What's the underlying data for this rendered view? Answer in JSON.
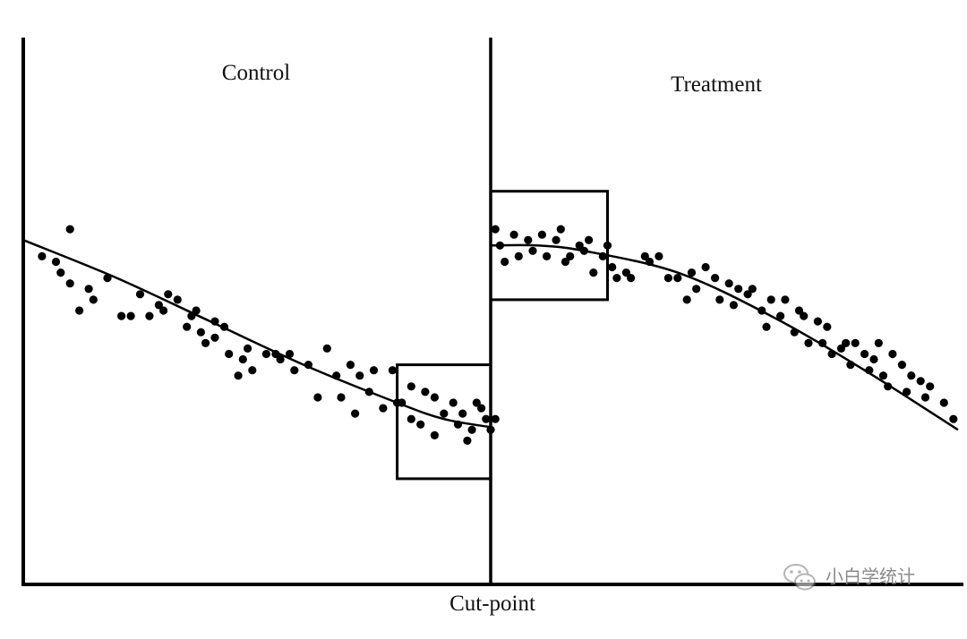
{
  "chart_data": {
    "type": "scatter",
    "title": "",
    "xlabel": "Cut-point",
    "ylabel": "",
    "xlim": [
      0,
      100
    ],
    "ylim": [
      0,
      100
    ],
    "grid": false,
    "cutpoint": 50,
    "group_labels": {
      "left": "Control",
      "right": "Treatment"
    },
    "series": [
      {
        "name": "Control",
        "fit": [
          [
            0,
            63
          ],
          [
            10,
            56
          ],
          [
            20,
            48
          ],
          [
            30,
            40
          ],
          [
            40,
            33
          ],
          [
            45,
            30
          ],
          [
            50,
            28.5
          ]
        ],
        "points": [
          [
            2,
            60
          ],
          [
            3.5,
            59
          ],
          [
            4,
            57
          ],
          [
            5,
            55
          ],
          [
            5,
            65
          ],
          [
            6,
            50
          ],
          [
            7,
            54
          ],
          [
            7.5,
            52
          ],
          [
            9,
            56
          ],
          [
            10.5,
            49
          ],
          [
            11.5,
            49
          ],
          [
            12.5,
            53
          ],
          [
            13.5,
            49
          ],
          [
            14.5,
            51
          ],
          [
            15,
            50
          ],
          [
            15.5,
            53
          ],
          [
            16.5,
            52
          ],
          [
            17.5,
            47
          ],
          [
            18,
            49
          ],
          [
            18.5,
            50
          ],
          [
            19,
            46
          ],
          [
            19.5,
            44
          ],
          [
            20.5,
            45
          ],
          [
            20.5,
            48
          ],
          [
            21.5,
            47
          ],
          [
            22,
            42
          ],
          [
            23,
            38
          ],
          [
            23.5,
            41
          ],
          [
            24,
            43
          ],
          [
            24.5,
            39
          ],
          [
            26,
            42
          ],
          [
            27,
            42
          ],
          [
            27.5,
            41
          ],
          [
            28.5,
            42
          ],
          [
            29,
            39
          ],
          [
            30.5,
            40
          ],
          [
            31.5,
            34
          ],
          [
            32.5,
            43
          ],
          [
            33.5,
            38
          ],
          [
            34,
            34
          ],
          [
            35,
            40
          ],
          [
            35.5,
            31
          ],
          [
            36,
            38
          ],
          [
            37,
            35
          ],
          [
            37.5,
            39
          ],
          [
            38.5,
            32
          ],
          [
            39.5,
            39
          ],
          [
            40,
            33
          ],
          [
            40.5,
            33
          ],
          [
            41.5,
            30
          ],
          [
            41.5,
            36
          ],
          [
            42.5,
            29
          ],
          [
            43,
            35
          ],
          [
            44,
            34
          ],
          [
            44,
            27
          ],
          [
            45,
            31
          ],
          [
            46,
            33
          ],
          [
            46.5,
            29
          ],
          [
            47,
            31
          ],
          [
            47.5,
            26
          ],
          [
            48,
            28
          ],
          [
            48.5,
            33
          ],
          [
            49,
            32
          ],
          [
            49.5,
            30
          ],
          [
            50,
            28
          ],
          [
            50.5,
            30
          ]
        ]
      },
      {
        "name": "Treatment",
        "fit": [
          [
            50,
            62
          ],
          [
            55,
            62
          ],
          [
            60,
            61
          ],
          [
            70,
            57
          ],
          [
            80,
            49
          ],
          [
            90,
            39
          ],
          [
            100,
            28
          ]
        ],
        "points": [
          [
            50.5,
            65
          ],
          [
            51,
            62
          ],
          [
            51.5,
            59
          ],
          [
            52.5,
            64
          ],
          [
            53,
            60
          ],
          [
            54,
            63
          ],
          [
            54.5,
            61
          ],
          [
            55.5,
            64
          ],
          [
            56,
            60
          ],
          [
            57,
            63
          ],
          [
            57.5,
            65
          ],
          [
            58,
            59
          ],
          [
            58.5,
            60
          ],
          [
            59.5,
            62
          ],
          [
            60,
            61
          ],
          [
            60.5,
            63
          ],
          [
            61,
            57
          ],
          [
            62,
            60
          ],
          [
            62.5,
            62
          ],
          [
            63,
            58
          ],
          [
            63.5,
            56
          ],
          [
            64.5,
            57
          ],
          [
            65,
            56
          ],
          [
            66.5,
            60
          ],
          [
            67,
            59
          ],
          [
            68,
            60
          ],
          [
            69,
            56
          ],
          [
            70,
            56
          ],
          [
            71,
            52
          ],
          [
            71.5,
            57
          ],
          [
            72,
            54
          ],
          [
            73,
            58
          ],
          [
            74,
            56
          ],
          [
            74.5,
            52
          ],
          [
            75.5,
            55
          ],
          [
            76,
            51
          ],
          [
            76.5,
            54
          ],
          [
            77.5,
            53
          ],
          [
            78,
            54
          ],
          [
            79,
            50
          ],
          [
            79.5,
            47
          ],
          [
            80,
            52
          ],
          [
            81,
            49
          ],
          [
            81.5,
            52
          ],
          [
            82.5,
            46
          ],
          [
            83,
            50
          ],
          [
            83.5,
            49
          ],
          [
            84,
            44
          ],
          [
            85,
            48
          ],
          [
            85.5,
            44
          ],
          [
            86,
            47
          ],
          [
            86.5,
            42
          ],
          [
            87.5,
            43
          ],
          [
            88,
            44
          ],
          [
            88.5,
            40
          ],
          [
            89,
            44
          ],
          [
            90,
            42
          ],
          [
            90.5,
            39
          ],
          [
            91,
            41
          ],
          [
            91.5,
            44
          ],
          [
            92,
            38
          ],
          [
            92.5,
            36
          ],
          [
            93,
            42
          ],
          [
            94,
            40
          ],
          [
            94.5,
            35
          ],
          [
            95,
            38
          ],
          [
            96,
            37
          ],
          [
            96.5,
            34
          ],
          [
            97,
            36
          ],
          [
            98.5,
            33
          ],
          [
            99.5,
            30
          ]
        ]
      }
    ],
    "highlight_boxes": [
      {
        "name": "Control near cut-point",
        "x": [
          40,
          50
        ],
        "y": [
          19,
          40
        ]
      },
      {
        "name": "Treatment near cut-point",
        "x": [
          50,
          62.5
        ],
        "y": [
          52,
          72
        ]
      }
    ]
  },
  "watermark": {
    "icon": "wechat-icon",
    "text": "小白学统计"
  }
}
